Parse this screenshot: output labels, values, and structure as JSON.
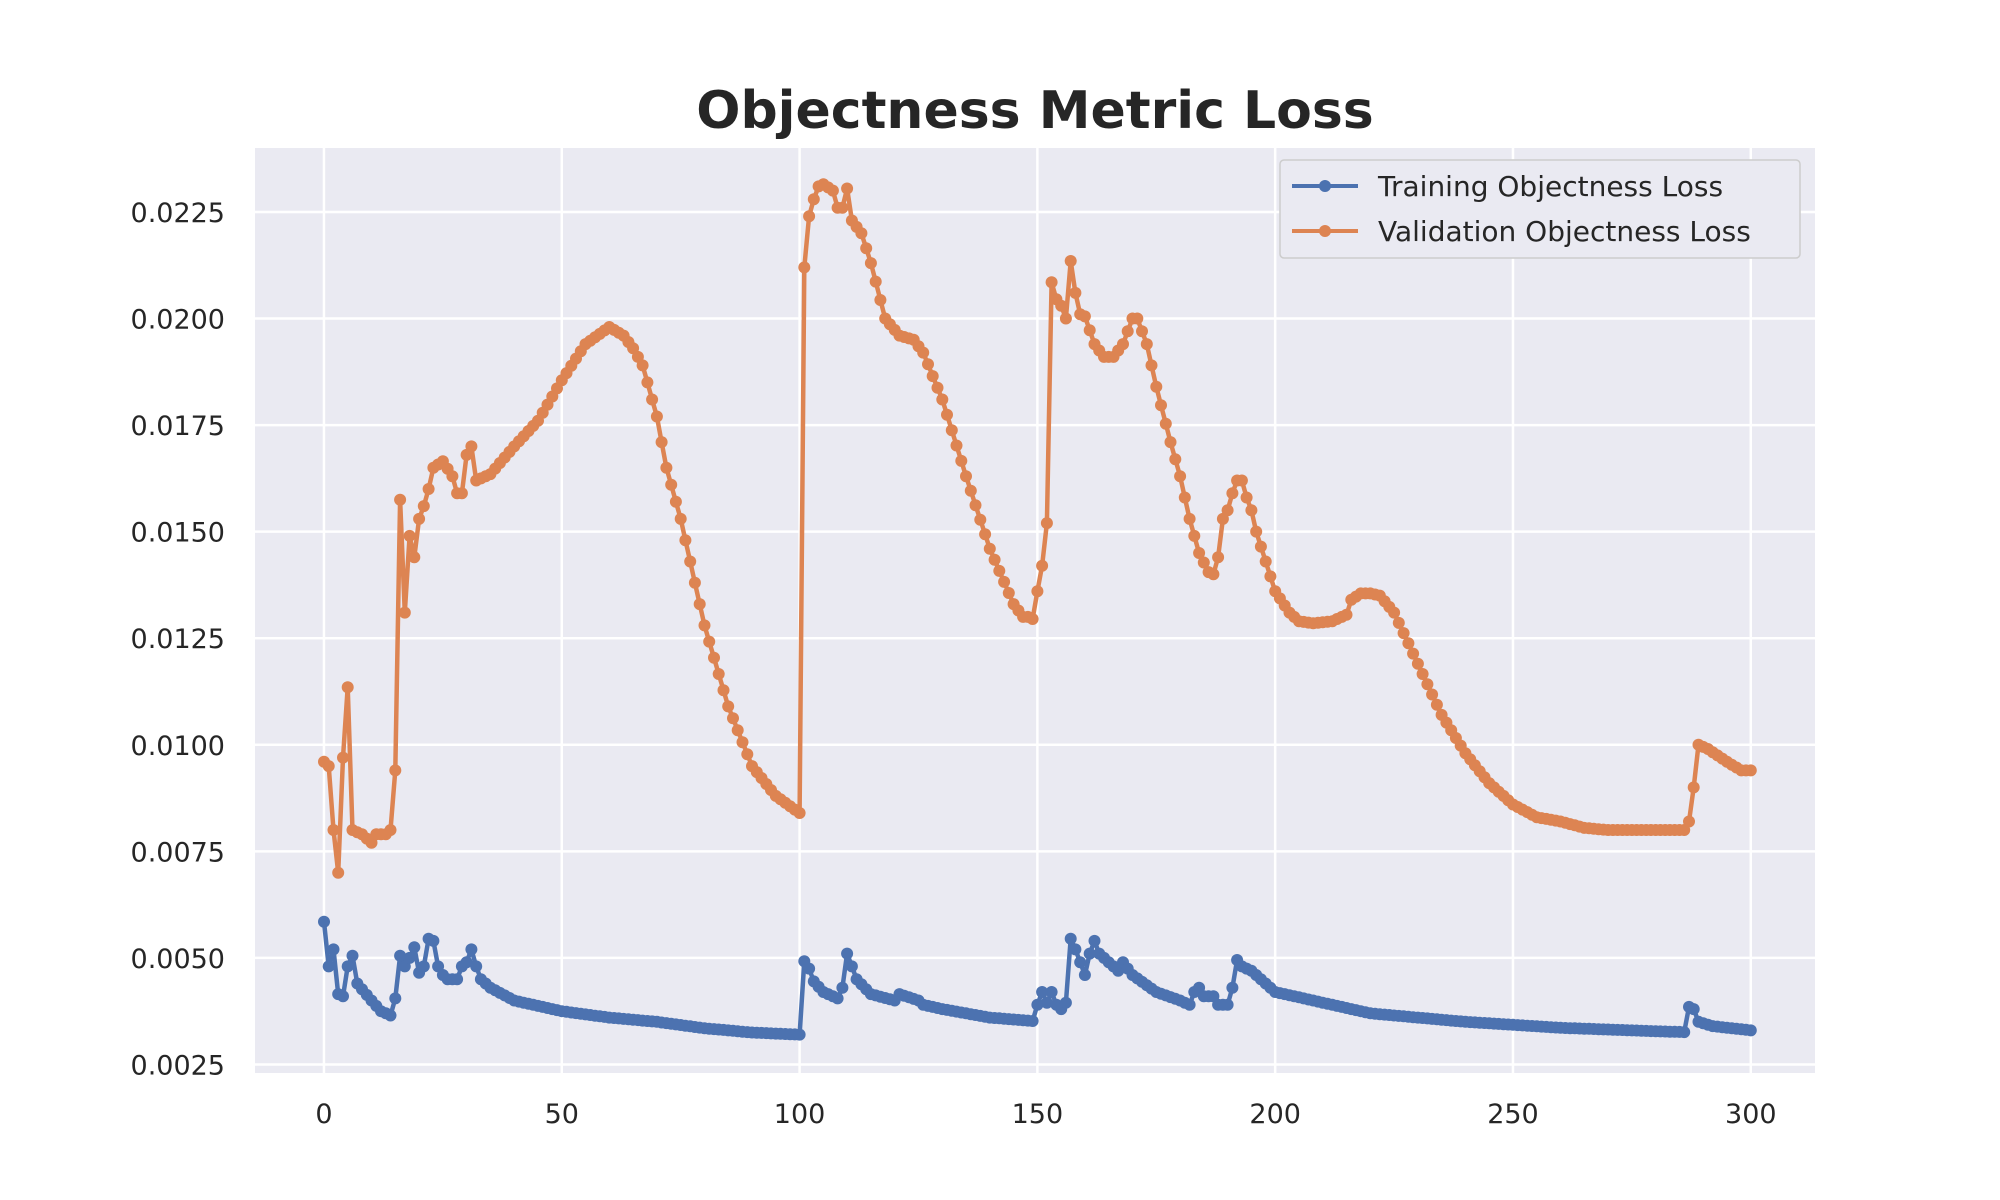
{
  "chart_data": {
    "type": "line",
    "title": "Objectness Metric Loss",
    "xlabel": "",
    "ylabel": "",
    "xlim": [
      -14.5,
      313.5
    ],
    "ylim": [
      0.0023,
      0.024
    ],
    "xticks": [
      0,
      50,
      100,
      150,
      200,
      250,
      300
    ],
    "yticks": [
      0.0025,
      0.005,
      0.0075,
      0.01,
      0.0125,
      0.015,
      0.0175,
      0.02,
      0.0225
    ],
    "xtick_labels": [
      "0",
      "50",
      "100",
      "150",
      "200",
      "250",
      "300"
    ],
    "ytick_labels": [
      "0.0025",
      "0.0050",
      "0.0075",
      "0.0100",
      "0.0125",
      "0.0150",
      "0.0175",
      "0.0200",
      "0.0225"
    ],
    "grid": true,
    "legend_position": "top-right",
    "series": [
      {
        "name": "Training Objectness Loss",
        "color": "#4c72b0",
        "keypoints": [
          [
            0,
            0.00585
          ],
          [
            1,
            0.0048
          ],
          [
            2,
            0.0052
          ],
          [
            3,
            0.00415
          ],
          [
            4,
            0.0041
          ],
          [
            5,
            0.0048
          ],
          [
            6,
            0.00505
          ],
          [
            7,
            0.0044
          ],
          [
            10,
            0.004
          ],
          [
            12,
            0.00375
          ],
          [
            14,
            0.00365
          ],
          [
            15,
            0.00405
          ],
          [
            16,
            0.00505
          ],
          [
            17,
            0.0048
          ],
          [
            18,
            0.005
          ],
          [
            19,
            0.00525
          ],
          [
            20,
            0.00465
          ],
          [
            21,
            0.0048
          ],
          [
            22,
            0.00545
          ],
          [
            23,
            0.0054
          ],
          [
            24,
            0.0048
          ],
          [
            25,
            0.0046
          ],
          [
            26,
            0.0045
          ],
          [
            28,
            0.0045
          ],
          [
            29,
            0.0048
          ],
          [
            30,
            0.0049
          ],
          [
            31,
            0.0052
          ],
          [
            32,
            0.0048
          ],
          [
            33,
            0.0045
          ],
          [
            35,
            0.0043
          ],
          [
            40,
            0.004
          ],
          [
            50,
            0.00375
          ],
          [
            60,
            0.0036
          ],
          [
            70,
            0.0035
          ],
          [
            80,
            0.00335
          ],
          [
            90,
            0.00325
          ],
          [
            100,
            0.0032
          ],
          [
            101,
            0.00492
          ],
          [
            102,
            0.00475
          ],
          [
            103,
            0.00445
          ],
          [
            105,
            0.0042
          ],
          [
            108,
            0.00405
          ],
          [
            109,
            0.0043
          ],
          [
            110,
            0.0051
          ],
          [
            111,
            0.0048
          ],
          [
            112,
            0.0045
          ],
          [
            115,
            0.00415
          ],
          [
            120,
            0.004
          ],
          [
            121,
            0.00415
          ],
          [
            125,
            0.004
          ],
          [
            126,
            0.0039
          ],
          [
            130,
            0.0038
          ],
          [
            140,
            0.0036
          ],
          [
            149,
            0.00352
          ],
          [
            150,
            0.0039
          ],
          [
            151,
            0.0042
          ],
          [
            152,
            0.00395
          ],
          [
            153,
            0.0042
          ],
          [
            154,
            0.0039
          ],
          [
            155,
            0.0038
          ],
          [
            156,
            0.00395
          ],
          [
            157,
            0.00545
          ],
          [
            158,
            0.0052
          ],
          [
            159,
            0.0049
          ],
          [
            160,
            0.0046
          ],
          [
            161,
            0.0051
          ],
          [
            162,
            0.0054
          ],
          [
            163,
            0.0051
          ],
          [
            165,
            0.0049
          ],
          [
            167,
            0.0047
          ],
          [
            168,
            0.0049
          ],
          [
            170,
            0.0046
          ],
          [
            175,
            0.0042
          ],
          [
            180,
            0.004
          ],
          [
            182,
            0.0039
          ],
          [
            183,
            0.0042
          ],
          [
            184,
            0.0043
          ],
          [
            185,
            0.0041
          ],
          [
            187,
            0.0041
          ],
          [
            188,
            0.0039
          ],
          [
            190,
            0.0039
          ],
          [
            191,
            0.0043
          ],
          [
            192,
            0.00495
          ],
          [
            193,
            0.0048
          ],
          [
            195,
            0.0047
          ],
          [
            197,
            0.0045
          ],
          [
            200,
            0.0042
          ],
          [
            210,
            0.00395
          ],
          [
            220,
            0.0037
          ],
          [
            230,
            0.0036
          ],
          [
            240,
            0.0035
          ],
          [
            250,
            0.00343
          ],
          [
            260,
            0.00336
          ],
          [
            270,
            0.00332
          ],
          [
            280,
            0.00328
          ],
          [
            286,
            0.00326
          ],
          [
            287,
            0.00385
          ],
          [
            288,
            0.0038
          ],
          [
            289,
            0.0035
          ],
          [
            292,
            0.0034
          ],
          [
            300,
            0.0033
          ]
        ]
      },
      {
        "name": "Validation Objectness Loss",
        "color": "#dd8452",
        "keypoints": [
          [
            0,
            0.0096
          ],
          [
            1,
            0.0095
          ],
          [
            2,
            0.008
          ],
          [
            3,
            0.007
          ],
          [
            4,
            0.0097
          ],
          [
            5,
            0.01135
          ],
          [
            6,
            0.008
          ],
          [
            8,
            0.0079
          ],
          [
            10,
            0.0077
          ],
          [
            11,
            0.0079
          ],
          [
            13,
            0.0079
          ],
          [
            14,
            0.008
          ],
          [
            15,
            0.0094
          ],
          [
            16,
            0.01575
          ],
          [
            17,
            0.0131
          ],
          [
            18,
            0.0149
          ],
          [
            19,
            0.0144
          ],
          [
            20,
            0.0153
          ],
          [
            21,
            0.0156
          ],
          [
            22,
            0.016
          ],
          [
            23,
            0.0165
          ],
          [
            25,
            0.01665
          ],
          [
            27,
            0.0163
          ],
          [
            28,
            0.0159
          ],
          [
            29,
            0.0159
          ],
          [
            30,
            0.0168
          ],
          [
            31,
            0.017
          ],
          [
            32,
            0.0162
          ],
          [
            35,
            0.01635
          ],
          [
            40,
            0.017
          ],
          [
            45,
            0.0176
          ],
          [
            50,
            0.01855
          ],
          [
            55,
            0.0194
          ],
          [
            60,
            0.0198
          ],
          [
            63,
            0.0196
          ],
          [
            65,
            0.0193
          ],
          [
            67,
            0.0189
          ],
          [
            70,
            0.0177
          ],
          [
            72,
            0.0165
          ],
          [
            75,
            0.0153
          ],
          [
            80,
            0.0128
          ],
          [
            85,
            0.0109
          ],
          [
            90,
            0.0095
          ],
          [
            95,
            0.0088
          ],
          [
            100,
            0.0084
          ],
          [
            101,
            0.0212
          ],
          [
            102,
            0.0224
          ],
          [
            103,
            0.0228
          ],
          [
            104,
            0.0231
          ],
          [
            105,
            0.02315
          ],
          [
            107,
            0.023
          ],
          [
            108,
            0.0226
          ],
          [
            109,
            0.0226
          ],
          [
            110,
            0.02305
          ],
          [
            111,
            0.0223
          ],
          [
            113,
            0.022
          ],
          [
            115,
            0.0213
          ],
          [
            118,
            0.02
          ],
          [
            121,
            0.0196
          ],
          [
            124,
            0.0195
          ],
          [
            126,
            0.0192
          ],
          [
            130,
            0.0181
          ],
          [
            135,
            0.0163
          ],
          [
            140,
            0.0146
          ],
          [
            145,
            0.0133
          ],
          [
            147,
            0.013
          ],
          [
            148,
            0.013
          ],
          [
            149,
            0.01295
          ],
          [
            150,
            0.0136
          ],
          [
            151,
            0.0142
          ],
          [
            152,
            0.0152
          ],
          [
            153,
            0.02085
          ],
          [
            154,
            0.02045
          ],
          [
            155,
            0.0203
          ],
          [
            156,
            0.02
          ],
          [
            157,
            0.02135
          ],
          [
            158,
            0.0206
          ],
          [
            159,
            0.0201
          ],
          [
            160,
            0.02005
          ],
          [
            162,
            0.0194
          ],
          [
            164,
            0.0191
          ],
          [
            166,
            0.0191
          ],
          [
            168,
            0.0194
          ],
          [
            170,
            0.02
          ],
          [
            171,
            0.02
          ],
          [
            173,
            0.0194
          ],
          [
            175,
            0.0184
          ],
          [
            178,
            0.0171
          ],
          [
            180,
            0.0163
          ],
          [
            182,
            0.0153
          ],
          [
            184,
            0.0145
          ],
          [
            186,
            0.01405
          ],
          [
            187,
            0.014
          ],
          [
            188,
            0.0144
          ],
          [
            189,
            0.0153
          ],
          [
            190,
            0.0155
          ],
          [
            191,
            0.0159
          ],
          [
            192,
            0.0162
          ],
          [
            193,
            0.0162
          ],
          [
            194,
            0.0158
          ],
          [
            195,
            0.0155
          ],
          [
            196,
            0.015
          ],
          [
            198,
            0.0143
          ],
          [
            200,
            0.0136
          ],
          [
            203,
            0.0131
          ],
          [
            205,
            0.0129
          ],
          [
            208,
            0.01285
          ],
          [
            212,
            0.0129
          ],
          [
            215,
            0.01305
          ],
          [
            216,
            0.0134
          ],
          [
            218,
            0.01355
          ],
          [
            220,
            0.01355
          ],
          [
            222,
            0.0135
          ],
          [
            225,
            0.0131
          ],
          [
            230,
            0.0119
          ],
          [
            235,
            0.0107
          ],
          [
            240,
            0.0098
          ],
          [
            245,
            0.0091
          ],
          [
            250,
            0.0086
          ],
          [
            255,
            0.0083
          ],
          [
            260,
            0.0082
          ],
          [
            265,
            0.00805
          ],
          [
            270,
            0.008
          ],
          [
            280,
            0.008
          ],
          [
            286,
            0.008
          ],
          [
            287,
            0.0082
          ],
          [
            288,
            0.009
          ],
          [
            289,
            0.01
          ],
          [
            291,
            0.0099
          ],
          [
            295,
            0.0096
          ],
          [
            298,
            0.0094
          ],
          [
            300,
            0.0094
          ]
        ]
      }
    ]
  }
}
